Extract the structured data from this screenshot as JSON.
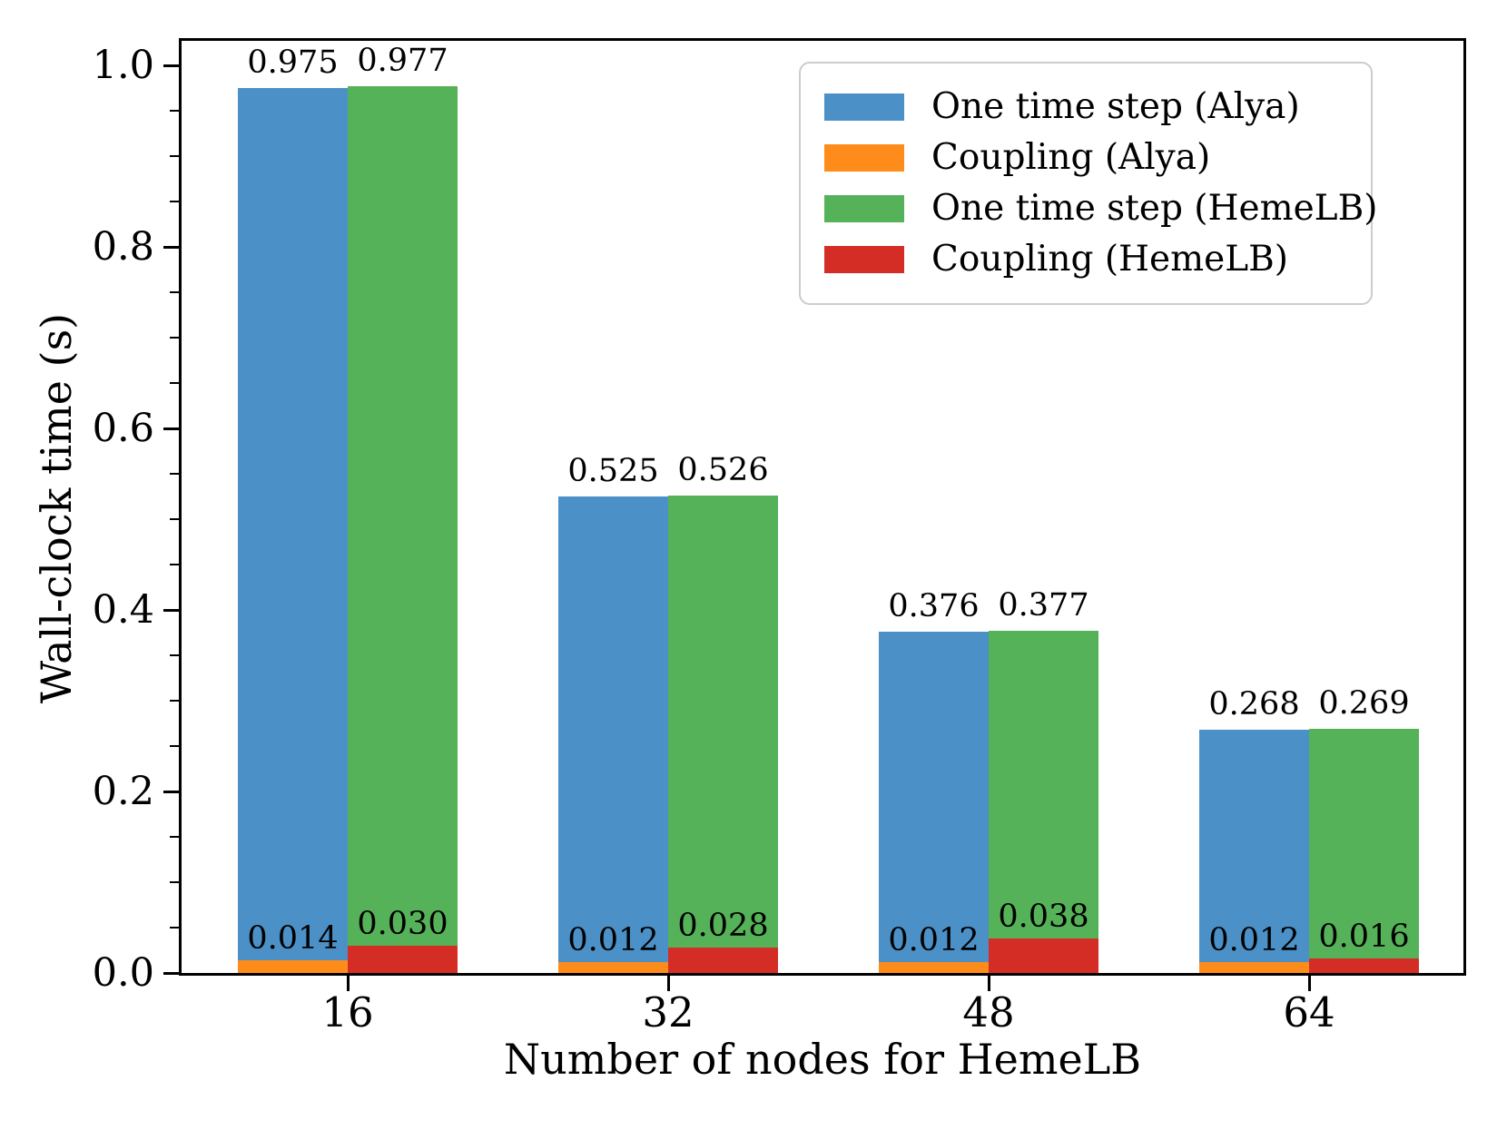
{
  "chart_data": {
    "type": "bar",
    "title": "",
    "xlabel": "Number of nodes for HemeLB",
    "ylabel": "Wall-clock time (s)",
    "categories": [
      "16",
      "32",
      "48",
      "64"
    ],
    "series": [
      {
        "name": "One time step (Alya)",
        "color": "#4B90C6",
        "values": [
          0.975,
          0.525,
          0.376,
          0.268
        ],
        "labels": [
          "0.975",
          "0.525",
          "0.376",
          "0.268"
        ]
      },
      {
        "name": "Coupling (Alya)",
        "color": "#FD8C1B",
        "values": [
          0.014,
          0.012,
          0.012,
          0.012
        ],
        "labels": [
          "0.014",
          "0.012",
          "0.012",
          "0.012"
        ]
      },
      {
        "name": "One time step (HemeLB)",
        "color": "#55B258",
        "values": [
          0.977,
          0.526,
          0.377,
          0.269
        ],
        "labels": [
          "0.977",
          "0.526",
          "0.377",
          "0.269"
        ]
      },
      {
        "name": "Coupling (HemeLB)",
        "color": "#D42D26",
        "values": [
          0.03,
          0.028,
          0.038,
          0.016
        ],
        "labels": [
          "0.030",
          "0.028",
          "0.038",
          "0.016"
        ]
      }
    ],
    "y_ticks": [
      {
        "value": 0.0,
        "label": "0.0"
      },
      {
        "value": 0.2,
        "label": "0.2"
      },
      {
        "value": 0.4,
        "label": "0.4"
      },
      {
        "value": 0.6,
        "label": "0.6"
      },
      {
        "value": 0.8,
        "label": "0.8"
      },
      {
        "value": 1.0,
        "label": "1.0"
      }
    ],
    "ylim": [
      0,
      1.027
    ],
    "minor_tick_step": 0.05,
    "grid": false,
    "legend_position": "upper right",
    "axis_color": "#000000",
    "text_color": "#000000",
    "legend_border_color": "#cccccc"
  }
}
